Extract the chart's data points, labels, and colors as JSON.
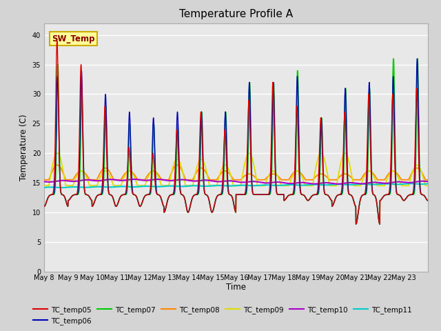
{
  "title": "Temperature Profile A",
  "xlabel": "Time",
  "ylabel": "Temperature (C)",
  "ylim": [
    0,
    42
  ],
  "yticks": [
    0,
    5,
    10,
    15,
    20,
    25,
    30,
    35,
    40
  ],
  "fig_facecolor": "#d4d4d4",
  "plot_facecolor": "#e8e8e8",
  "sw_temp_label": "SW_Temp",
  "sw_temp_box_color": "#ffff99",
  "sw_temp_box_edge": "#ccaa00",
  "sw_temp_text_color": "#880000",
  "series_colors": {
    "TC_temp05": "#dd0000",
    "TC_temp06": "#0000bb",
    "TC_temp07": "#00cc00",
    "TC_temp08": "#ff8800",
    "TC_temp09": "#dddd00",
    "TC_temp10": "#aa00cc",
    "TC_temp11": "#00cccc"
  },
  "x_tick_labels": [
    "May 8",
    "May 9",
    "May 10",
    "May 11",
    "May 12",
    "May 13",
    "May 14",
    "May 15",
    "May 16",
    "May 17",
    "May 18",
    "May 19",
    "May 20",
    "May 21",
    "May 22",
    "May 23"
  ]
}
